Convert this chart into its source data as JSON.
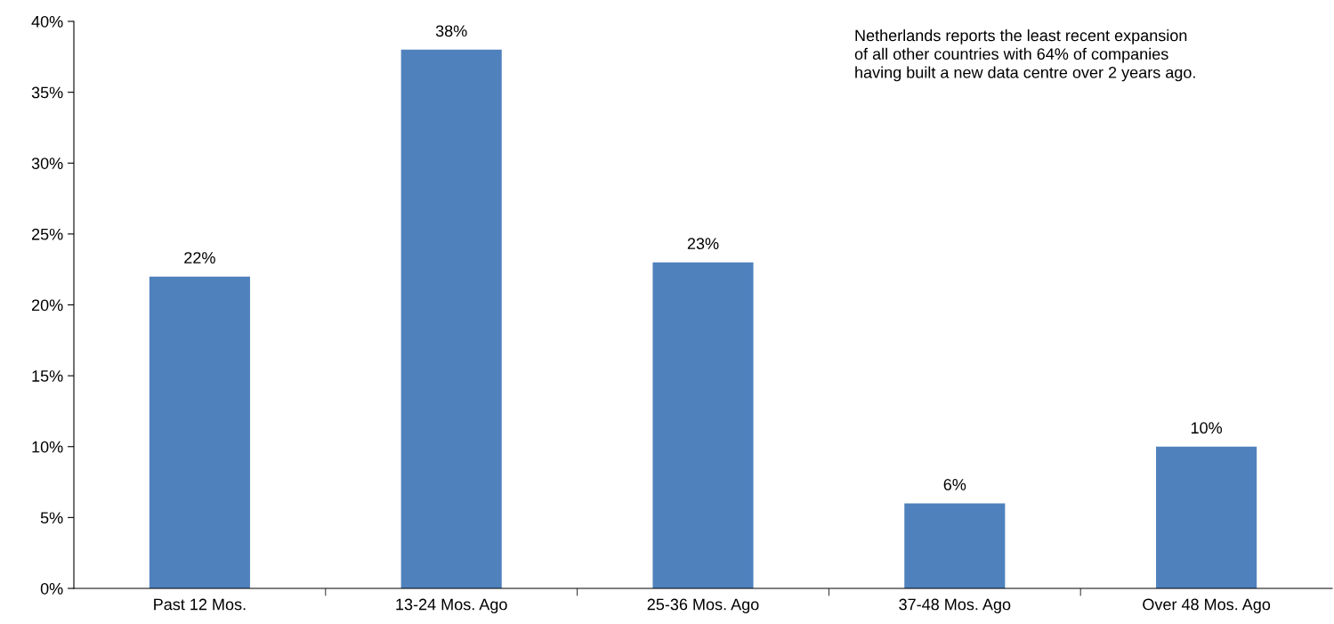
{
  "chart_data": {
    "type": "bar",
    "categories": [
      "Past 12 Mos.",
      "13-24 Mos. Ago",
      "25-36 Mos. Ago",
      "37-48 Mos. Ago",
      "Over 48 Mos. Ago"
    ],
    "values": [
      22,
      38,
      23,
      6,
      10
    ],
    "value_labels": [
      "22%",
      "38%",
      "23%",
      "6%",
      "10%"
    ],
    "color": "#4f81bd",
    "ylim": [
      0,
      40
    ],
    "yticks": [
      {
        "value": 0,
        "label": "0%"
      },
      {
        "value": 5,
        "label": "5%"
      },
      {
        "value": 10,
        "label": "10%"
      },
      {
        "value": 15,
        "label": "15%"
      },
      {
        "value": 20,
        "label": "20%"
      },
      {
        "value": 25,
        "label": "25%"
      },
      {
        "value": 30,
        "label": "30%"
      },
      {
        "value": 35,
        "label": "35%"
      },
      {
        "value": 40,
        "label": "40%"
      }
    ],
    "grid": false,
    "legend": false,
    "annotations": [
      "Netherlands reports the least recent expansion\nof all other countries with 64% of companies\nhaving built a new data centre over 2 years ago."
    ]
  }
}
